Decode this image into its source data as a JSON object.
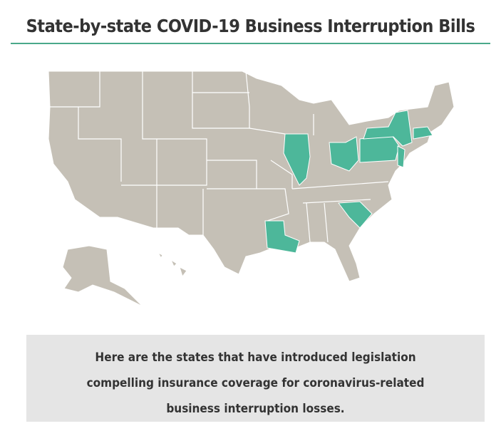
{
  "header": {
    "title": "State-by-state COVID-19 Business Interruption Bills"
  },
  "caption": {
    "text": "Here are the states that have introduced legislation compelling insurance coverage for coronavirus-related business interruption losses."
  }
}
